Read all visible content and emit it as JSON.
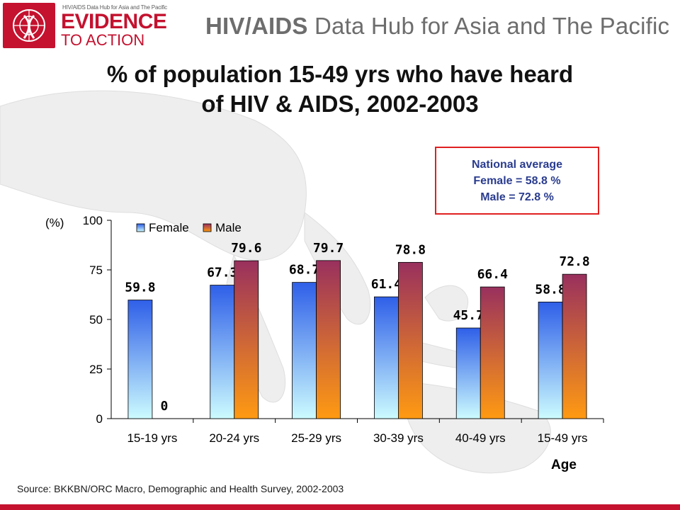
{
  "header": {
    "logo_small_text": "HIV/AIDS Data Hub for Asia and The Pacific",
    "logo_main_text": "EVIDENCE",
    "logo_sub_text": "TO ACTION",
    "hub_title_bold": "HIV/AIDS",
    "hub_title_rest": " Data Hub for Asia and The Pacific"
  },
  "slide": {
    "title_line1": "% of population 15-49 yrs who have heard",
    "title_line2": "of HIV & AIDS, 2002-2003"
  },
  "national_average": {
    "heading": "National average",
    "female": "Female = 58.8 %",
    "male": "Male = 72.8 %"
  },
  "source": "Source: BKKBN/ORC Macro, Demographic and Health Survey, 2002-2003",
  "colors": {
    "brand_red": "#c4122f",
    "female_top": "#2f5fe8",
    "female_bottom": "#ccfbff",
    "male_top": "#99305e",
    "male_bottom": "#ff9a12"
  },
  "chart_data": {
    "type": "bar",
    "title": "",
    "ylabel": "(%)",
    "xlabel": "Age",
    "ylim": [
      0,
      100
    ],
    "yticks": [
      0,
      25,
      50,
      75,
      100
    ],
    "legend_position": "top-left",
    "categories": [
      "15-19 yrs",
      "20-24 yrs",
      "25-29 yrs",
      "30-39 yrs",
      "40-49 yrs",
      "15-49 yrs"
    ],
    "series": [
      {
        "name": "Female",
        "values": [
          59.8,
          67.3,
          68.7,
          61.4,
          45.7,
          58.8
        ],
        "labels": [
          "59.8",
          "67.3",
          "68.7",
          "61.4",
          "45.7",
          "58.8"
        ]
      },
      {
        "name": "Male",
        "values": [
          0,
          79.6,
          79.7,
          78.8,
          66.4,
          72.8
        ],
        "labels": [
          "0",
          "79.6",
          "79.7",
          "78.8",
          "66.4",
          "72.8"
        ]
      }
    ]
  }
}
